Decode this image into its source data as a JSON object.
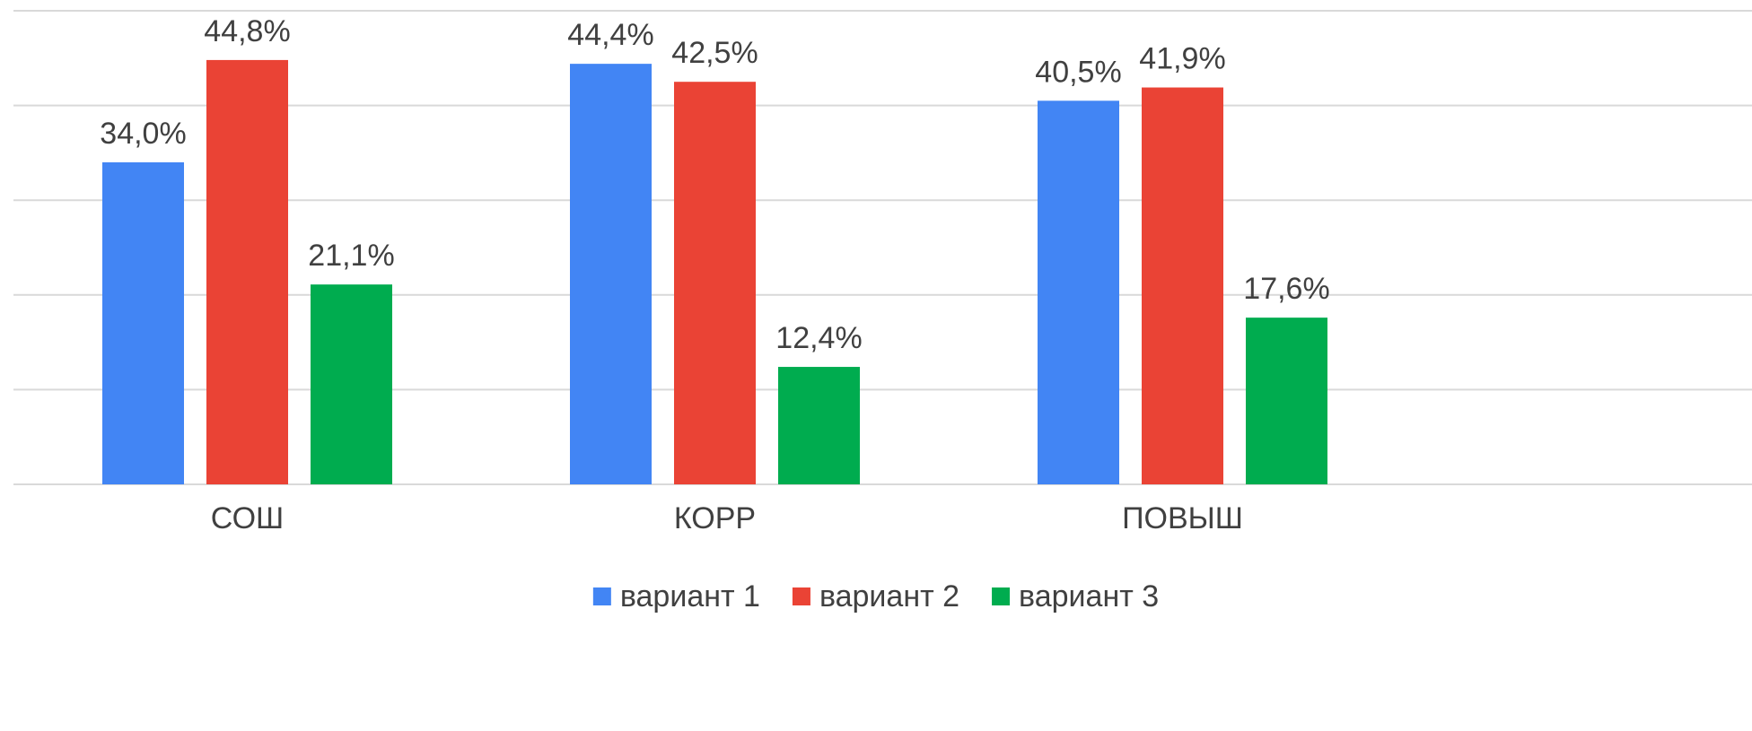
{
  "chart_data": {
    "type": "bar",
    "categories": [
      "СОШ",
      "КОРР",
      "ПОВЫШ"
    ],
    "series": [
      {
        "name": "вариант 1",
        "color": "#4285f4",
        "values": [
          34.0,
          44.4,
          40.5
        ],
        "value_labels": [
          "34,0%",
          "44,4%",
          "40,5%"
        ]
      },
      {
        "name": "вариант 2",
        "color": "#ea4335",
        "values": [
          44.8,
          42.5,
          41.9
        ],
        "value_labels": [
          "44,8%",
          "42,5%",
          "41,9%"
        ]
      },
      {
        "name": "вариант 3",
        "color": "#00ac4f",
        "values": [
          21.1,
          12.4,
          17.6
        ],
        "value_labels": [
          "21,1%",
          "12,4%",
          "17,6%"
        ]
      }
    ],
    "ylim": [
      0,
      50
    ],
    "yticks": [
      0,
      10,
      20,
      30,
      40,
      50
    ],
    "grid": true,
    "legend": "bottom"
  }
}
